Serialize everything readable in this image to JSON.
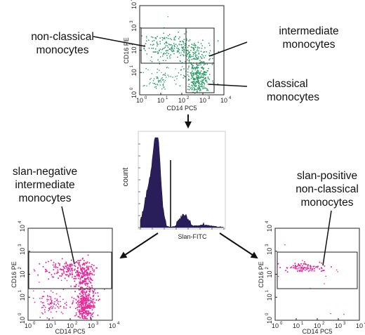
{
  "labels": {
    "non_classical_1": "non-classical",
    "non_classical_2": "monocytes",
    "intermediate_1": "intermediate",
    "intermediate_2": "monocytes",
    "classical_1": "classical",
    "classical_2": "monocytes",
    "slan_neg_1": "slan-negative",
    "slan_neg_2": "intermediate",
    "slan_neg_3": "monocytes",
    "slan_pos_1": "slan-positive",
    "slan_pos_2": "non-classical",
    "slan_pos_3": "monocytes"
  },
  "plots": {
    "top": {
      "xlabel": "CD14 PC5",
      "ylabel": "CD16 PE",
      "dot_color": "#2e9e6a"
    },
    "bottom_left": {
      "xlabel": "CD14 PC5",
      "ylabel": "CD16 PE",
      "dot_color": "#e8289a"
    },
    "bottom_right": {
      "xlabel": "CD14 PC5",
      "ylabel": "CD16 PE",
      "dot_color": "#e8289a"
    }
  },
  "ticks": [
    "10",
    "10",
    "10",
    "10",
    "10"
  ],
  "exponents": [
    "0",
    "1",
    "2",
    "3",
    "4"
  ],
  "histogram": {
    "ylabel": "count",
    "xlabel": "Slan-FITC",
    "fill_color": "#2a1e5a"
  },
  "arrow_color": "#111111"
}
